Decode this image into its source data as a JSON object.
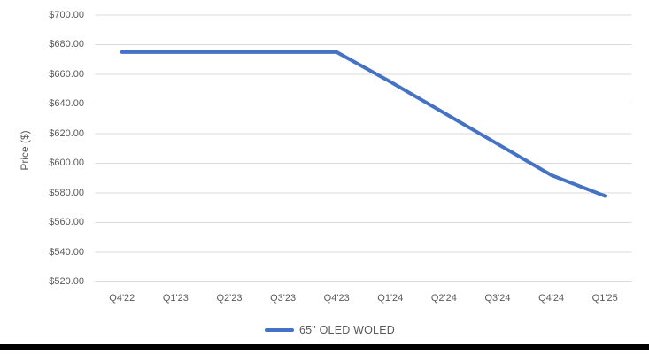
{
  "chart_data": {
    "type": "line",
    "title": "",
    "categories": [
      "Q4'22",
      "Q1'23",
      "Q2'23",
      "Q3'23",
      "Q4'23",
      "Q1'24",
      "Q2'24",
      "Q3'24",
      "Q4'24",
      "Q1'25"
    ],
    "series": [
      {
        "name": "65\" OLED WOLED",
        "values": [
          675,
          675,
          675,
          675,
          675,
          655,
          634,
          613,
          592,
          578
        ],
        "color": "#4472C4"
      }
    ],
    "xlabel": "",
    "ylabel": "Price ($)",
    "ylim": [
      520,
      700
    ],
    "ytick_step": 20,
    "ytick_labels": [
      "$520.00",
      "$540.00",
      "$560.00",
      "$580.00",
      "$600.00",
      "$620.00",
      "$640.00",
      "$660.00",
      "$680.00",
      "$700.00"
    ],
    "grid": true,
    "legend_position": "bottom"
  },
  "colors": {
    "line": "#4472C4",
    "gridline": "#D9D9D9",
    "axis_text": "#595959",
    "bottom_rule": "#000000",
    "background": "#FFFFFF"
  }
}
